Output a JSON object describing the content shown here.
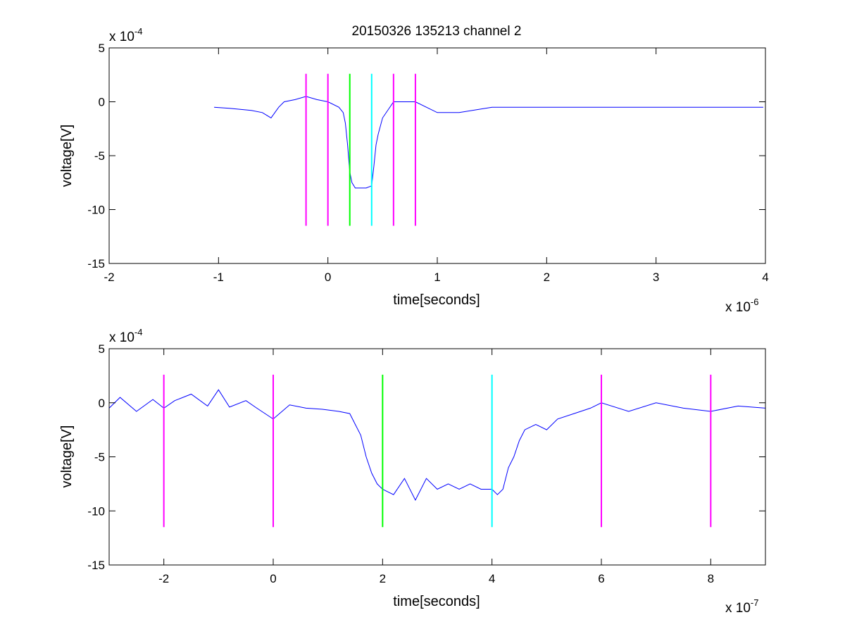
{
  "title": "20150326 135213 channel 2",
  "colors": {
    "signal": "#0000ff",
    "magenta_marker": "#ff00ff",
    "green_marker": "#00ff00",
    "cyan_marker": "#00ffff",
    "background": "#ffffff",
    "axis": "#000000"
  },
  "chart_data": [
    {
      "type": "line",
      "xlabel": "time[seconds]",
      "ylabel": "voltage[V]",
      "x_exponent_label": "x 10",
      "x_exponent_power": "-6",
      "y_exponent_label": "x 10",
      "y_exponent_power": "-4",
      "xlim": [
        -2,
        4
      ],
      "ylim": [
        -15,
        5
      ],
      "x_ticks": [
        -2,
        -1,
        0,
        1,
        2,
        3,
        4
      ],
      "x_tick_labels": [
        "-2",
        "-1",
        "0",
        "1",
        "2",
        "3",
        "4"
      ],
      "y_ticks": [
        -15,
        -10,
        -5,
        0,
        5
      ],
      "y_tick_labels": [
        "-15",
        "-10",
        "-5",
        "0",
        "5"
      ],
      "grid": false,
      "series": [
        {
          "color": "#0000ff",
          "x": [
            -1.04,
            -0.9,
            -0.8,
            -0.7,
            -0.6,
            -0.52,
            -0.45,
            -0.4,
            -0.3,
            -0.2,
            -0.1,
            0.0,
            0.1,
            0.14,
            0.16,
            0.18,
            0.2,
            0.22,
            0.25,
            0.3,
            0.35,
            0.4,
            0.42,
            0.44,
            0.46,
            0.5,
            0.6,
            0.8,
            1.0,
            1.2,
            1.5,
            2.0,
            2.5,
            3.0,
            3.5,
            3.98
          ],
          "y": [
            -0.5,
            -0.6,
            -0.7,
            -0.8,
            -1.0,
            -1.5,
            -0.5,
            0.0,
            0.2,
            0.5,
            0.2,
            0.0,
            -0.5,
            -1.0,
            -2.0,
            -4.0,
            -6.5,
            -7.5,
            -8.0,
            -8.0,
            -8.0,
            -7.8,
            -6.0,
            -4.0,
            -3.0,
            -1.5,
            0.0,
            0.0,
            -1.0,
            -1.0,
            -0.5,
            -0.5,
            -0.5,
            -0.5,
            -0.5,
            -0.5
          ]
        }
      ],
      "vlines": [
        {
          "x": -0.2,
          "ymin": -11.5,
          "ymax": 2.6,
          "color": "#ff00ff"
        },
        {
          "x": 0.0,
          "ymin": -11.5,
          "ymax": 2.6,
          "color": "#ff00ff"
        },
        {
          "x": 0.2,
          "ymin": -11.5,
          "ymax": 2.6,
          "color": "#00ff00"
        },
        {
          "x": 0.4,
          "ymin": -11.5,
          "ymax": 2.6,
          "color": "#00ffff"
        },
        {
          "x": 0.6,
          "ymin": -11.5,
          "ymax": 2.6,
          "color": "#ff00ff"
        },
        {
          "x": 0.8,
          "ymin": -11.5,
          "ymax": 2.6,
          "color": "#ff00ff"
        }
      ]
    },
    {
      "type": "line",
      "xlabel": "time[seconds]",
      "ylabel": "voltage[V]",
      "x_exponent_label": "x 10",
      "x_exponent_power": "-7",
      "y_exponent_label": "x 10",
      "y_exponent_power": "-4",
      "xlim": [
        -3,
        9
      ],
      "ylim": [
        -15,
        5
      ],
      "x_ticks": [
        -2,
        0,
        2,
        4,
        6,
        8
      ],
      "x_tick_labels": [
        "-2",
        "0",
        "2",
        "4",
        "6",
        "8"
      ],
      "y_ticks": [
        -15,
        -10,
        -5,
        0,
        5
      ],
      "y_tick_labels": [
        "-15",
        "-10",
        "-5",
        "0",
        "5"
      ],
      "grid": false,
      "series": [
        {
          "color": "#0000ff",
          "x": [
            -3.0,
            -2.8,
            -2.5,
            -2.2,
            -2.0,
            -1.8,
            -1.5,
            -1.2,
            -1.0,
            -0.8,
            -0.5,
            -0.3,
            0.0,
            0.3,
            0.6,
            0.9,
            1.2,
            1.4,
            1.5,
            1.6,
            1.7,
            1.8,
            1.9,
            2.0,
            2.2,
            2.4,
            2.6,
            2.8,
            3.0,
            3.2,
            3.4,
            3.6,
            3.8,
            4.0,
            4.1,
            4.2,
            4.3,
            4.4,
            4.5,
            4.6,
            4.8,
            5.0,
            5.2,
            5.5,
            5.8,
            6.0,
            6.5,
            7.0,
            7.5,
            8.0,
            8.5,
            9.0
          ],
          "y": [
            -0.5,
            0.5,
            -0.8,
            0.3,
            -0.5,
            0.2,
            0.8,
            -0.3,
            1.2,
            -0.4,
            0.2,
            -0.5,
            -1.5,
            -0.2,
            -0.5,
            -0.6,
            -0.8,
            -1.0,
            -2.0,
            -3.0,
            -5.0,
            -6.5,
            -7.5,
            -8.0,
            -8.5,
            -7.0,
            -9.0,
            -7.0,
            -8.0,
            -7.5,
            -8.0,
            -7.5,
            -8.0,
            -8.0,
            -8.5,
            -8.0,
            -6.0,
            -5.0,
            -3.5,
            -2.5,
            -2.0,
            -2.5,
            -1.5,
            -1.0,
            -0.5,
            0.0,
            -0.8,
            0.0,
            -0.5,
            -0.8,
            -0.3,
            -0.5
          ]
        }
      ],
      "vlines": [
        {
          "x": -2.0,
          "ymin": -11.5,
          "ymax": 2.6,
          "color": "#ff00ff"
        },
        {
          "x": 0.0,
          "ymin": -11.5,
          "ymax": 2.6,
          "color": "#ff00ff"
        },
        {
          "x": 2.0,
          "ymin": -11.5,
          "ymax": 2.6,
          "color": "#00ff00"
        },
        {
          "x": 4.0,
          "ymin": -11.5,
          "ymax": 2.6,
          "color": "#00ffff"
        },
        {
          "x": 6.0,
          "ymin": -11.5,
          "ymax": 2.6,
          "color": "#ff00ff"
        },
        {
          "x": 8.0,
          "ymin": -11.5,
          "ymax": 2.6,
          "color": "#ff00ff"
        }
      ]
    }
  ]
}
